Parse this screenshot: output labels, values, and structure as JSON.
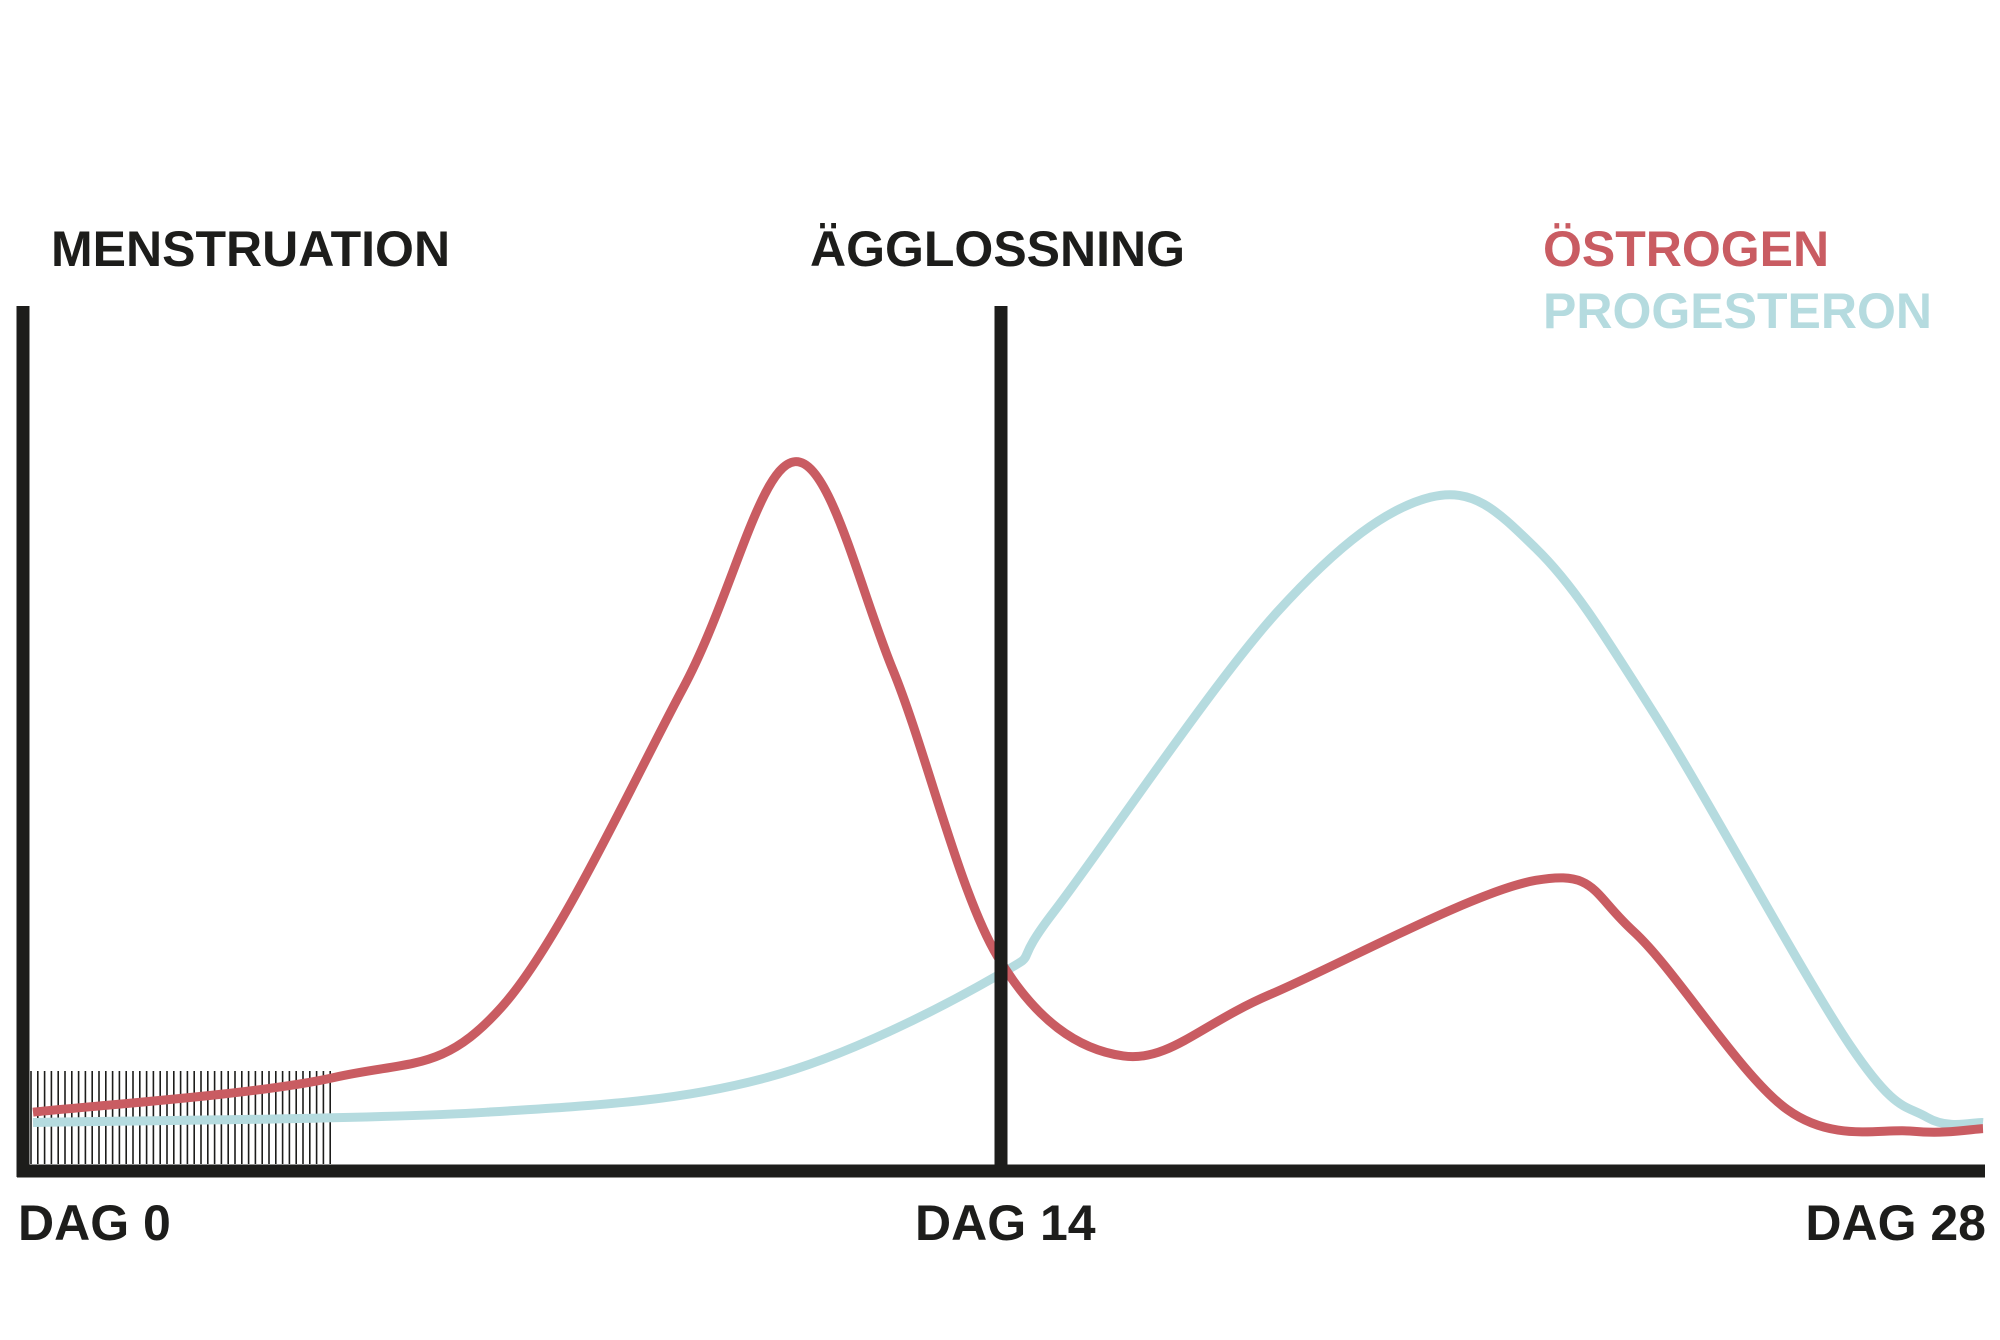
{
  "chart_data": {
    "type": "line",
    "title": "",
    "xlabel": "",
    "ylabel": "",
    "xlim": [
      0,
      28
    ],
    "ylim": [
      0,
      100
    ],
    "grid": false,
    "legend_position": "top-right",
    "x_tick_labels": [
      {
        "x": 0,
        "label": "DAG 0"
      },
      {
        "x": 14,
        "label": "DAG 14"
      },
      {
        "x": 28,
        "label": "DAG 28"
      }
    ],
    "annotations": [
      {
        "label": "MENSTRUATION",
        "range": [
          0,
          4.4
        ],
        "style": "hatched"
      },
      {
        "label": "ÄGGLOSSNING",
        "x": 14,
        "style": "vertical-line"
      }
    ],
    "series": [
      {
        "name": "ÖSTROGEN",
        "color": "#c95c62",
        "points": [
          [
            0.1,
            6.8
          ],
          [
            4.4,
            10.8
          ],
          [
            6.8,
            18.9
          ],
          [
            9.4,
            55.8
          ],
          [
            11.0,
            82.0
          ],
          [
            12.4,
            58.0
          ],
          [
            13.9,
            24.8
          ],
          [
            15.7,
            13.3
          ],
          [
            17.8,
            20.4
          ],
          [
            21.6,
            33.6
          ],
          [
            23.0,
            27.7
          ],
          [
            25.2,
            7.1
          ],
          [
            27.0,
            4.6
          ],
          [
            28,
            4.9
          ]
        ]
      },
      {
        "name": "PROGESTERON",
        "color": "#b5dbdf",
        "points": [
          [
            0.1,
            5.6
          ],
          [
            6.6,
            6.8
          ],
          [
            10.6,
            10.8
          ],
          [
            13.9,
            22.6
          ],
          [
            14.7,
            29.9
          ],
          [
            17.9,
            64.6
          ],
          [
            20.1,
            77.9
          ],
          [
            21.6,
            72.0
          ],
          [
            23.3,
            52.8
          ],
          [
            26.1,
            14.5
          ],
          [
            27.2,
            6.2
          ],
          [
            28,
            5.6
          ]
        ]
      }
    ]
  }
}
